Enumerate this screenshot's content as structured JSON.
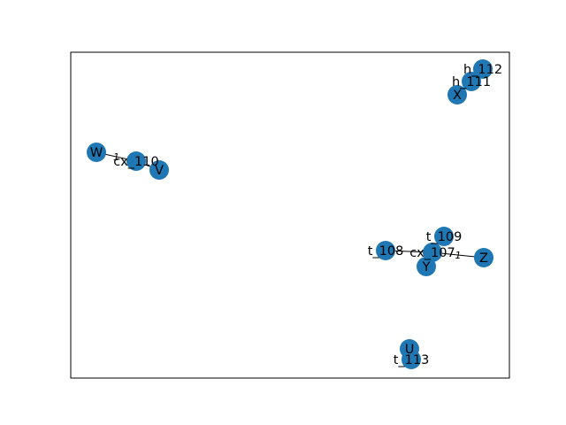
{
  "graph": {
    "colors": {
      "node": "#1f77b4",
      "edge": "#000000",
      "frame": "#000000",
      "background": "#ffffff"
    },
    "nodes": [
      {
        "id": "h_112",
        "label": "h_112"
      },
      {
        "id": "h_111",
        "label": "h_111"
      },
      {
        "id": "X",
        "label": "X"
      },
      {
        "id": "W",
        "label": "W"
      },
      {
        "id": "cx_110",
        "label": "cx_110"
      },
      {
        "id": "V",
        "label": "V"
      },
      {
        "id": "t_109",
        "label": "t_109"
      },
      {
        "id": "t_108",
        "label": "t_108"
      },
      {
        "id": "cx_107",
        "label": "cx_107"
      },
      {
        "id": "Y",
        "label": "Y"
      },
      {
        "id": "Z",
        "label": "Z"
      },
      {
        "id": "U",
        "label": "U"
      },
      {
        "id": "t_113",
        "label": "t_113"
      }
    ],
    "edges": [
      {
        "source": "h_112",
        "target": "h_111",
        "label": ""
      },
      {
        "source": "h_111",
        "target": "X",
        "label": ""
      },
      {
        "source": "W",
        "target": "cx_110",
        "label": "1"
      },
      {
        "source": "cx_110",
        "target": "V",
        "label": ""
      },
      {
        "source": "t_109",
        "target": "cx_107",
        "label": ""
      },
      {
        "source": "t_108",
        "target": "cx_107",
        "label": ""
      },
      {
        "source": "cx_107",
        "target": "Y",
        "label": ""
      },
      {
        "source": "cx_107",
        "target": "Z",
        "label": "1"
      },
      {
        "source": "U",
        "target": "t_113",
        "label": ""
      }
    ]
  }
}
